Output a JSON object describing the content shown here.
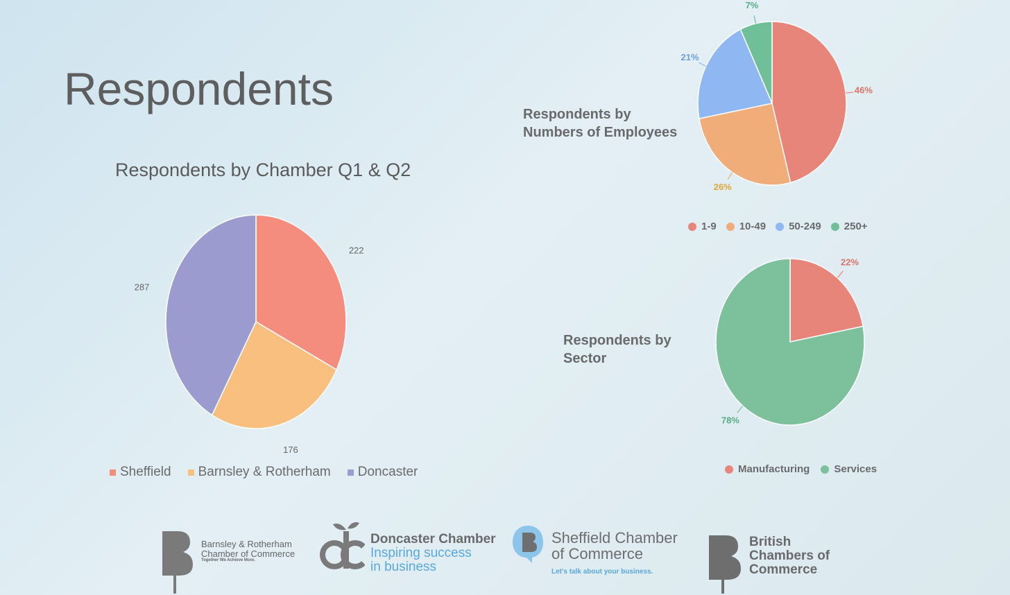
{
  "slide_title": "Respondents",
  "colors": {
    "sheffield": "#f48d7e",
    "barnsley": "#f8bf7f",
    "doncaster": "#9b9bd0",
    "emp_1_9": "#e8857a",
    "emp_10_49": "#f0ad7a",
    "emp_50_249": "#8fb8f3",
    "emp_250": "#6fbf98",
    "manufacturing": "#e8857a",
    "services": "#7cc19b"
  },
  "chart_data": [
    {
      "type": "pie",
      "title": "Respondents by Chamber Q1 & Q2",
      "categories": [
        "Sheffield",
        "Barnsley & Rotherham",
        "Doncaster"
      ],
      "values": [
        222,
        176,
        287
      ],
      "labels": [
        "222",
        "176",
        "287"
      ],
      "legend": "bottom"
    },
    {
      "type": "pie",
      "title": "Respondents by Numbers of Employees",
      "categories": [
        "1-9",
        "10-49",
        "50-249",
        "250+"
      ],
      "values": [
        46,
        26,
        21,
        7
      ],
      "labels": [
        "46%",
        "26%",
        "21%",
        "7%"
      ],
      "legend": "bottom"
    },
    {
      "type": "pie",
      "title": "Respondents by Sector",
      "categories": [
        "Manufacturing",
        "Services"
      ],
      "values": [
        22,
        78
      ],
      "labels": [
        "22%",
        "78%"
      ],
      "legend": "bottom"
    }
  ],
  "logos": {
    "brcc": {
      "line1": "Barnsley & Rotherham",
      "line2": "Chamber of Commerce",
      "tagline": "Together We Achieve More."
    },
    "dc": {
      "name": "Doncaster Chamber",
      "tagline1": "Inspiring success",
      "tagline2": "in business"
    },
    "sheffield": {
      "line1": "Sheffield Chamber",
      "line2": "of Commerce",
      "tagline": "Let's talk about your business."
    },
    "bcc": {
      "line1": "British",
      "line2": "Chambers of",
      "line3": "Commerce"
    }
  }
}
